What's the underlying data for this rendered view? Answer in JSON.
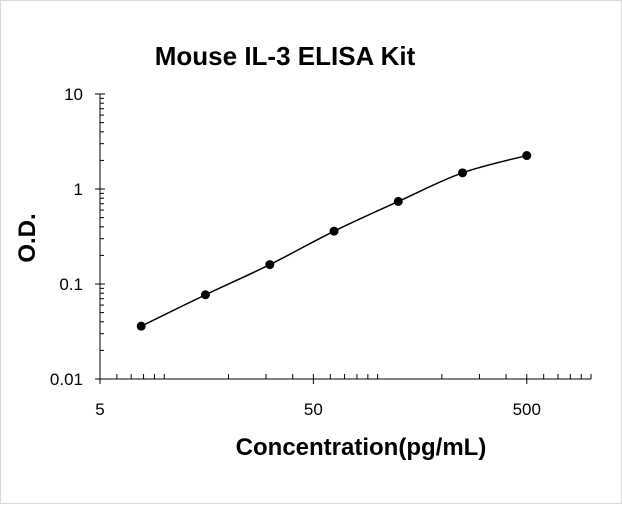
{
  "chart_data": {
    "type": "scatter",
    "title": "Mouse IL-3 ELISA Kit",
    "xlabel": "Concentration(pg/mL)",
    "ylabel": "O.D.",
    "x_scale": "log",
    "y_scale": "log",
    "xlim": [
      5,
      1000
    ],
    "ylim": [
      0.01,
      10
    ],
    "x_tick_labels": [
      "5",
      "50",
      "500"
    ],
    "y_tick_labels": [
      "10",
      "1",
      "0.1",
      "0.01"
    ],
    "grid": false,
    "legend": "none",
    "series": [
      {
        "x": [
          7.8,
          15.6,
          31.25,
          62.5,
          125,
          250,
          500
        ],
        "y": [
          0.036,
          0.077,
          0.16,
          0.36,
          0.74,
          1.48,
          2.25
        ]
      }
    ],
    "colors": {
      "marker": "#000000",
      "line": "#000000",
      "axis": "#000000"
    }
  }
}
